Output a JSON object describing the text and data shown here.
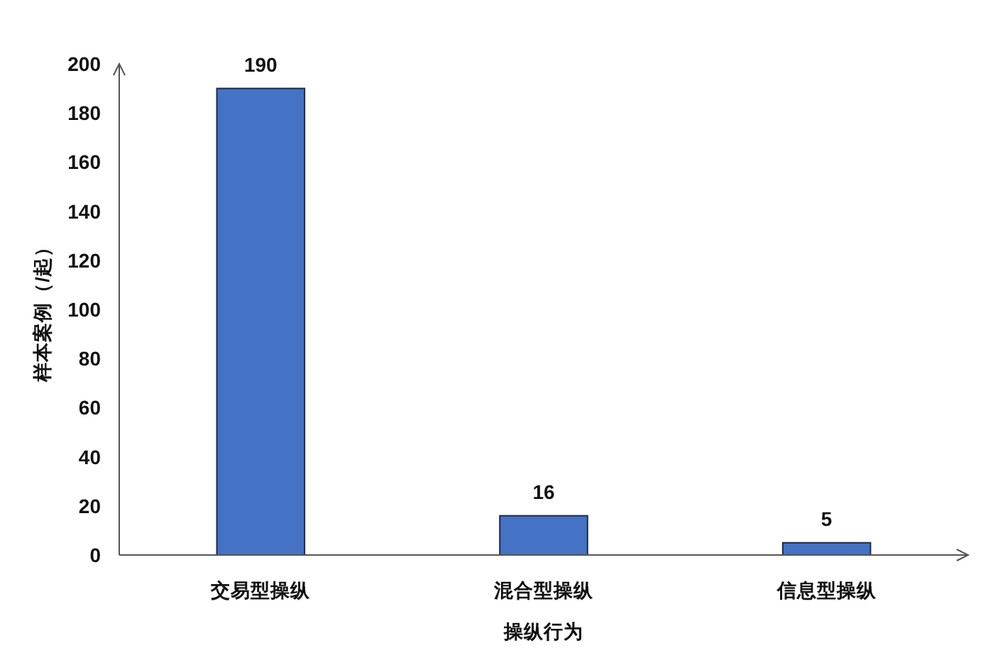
{
  "chart_data": {
    "type": "bar",
    "xlabel": "操纵行为",
    "ylabel": "样本案例（/起）",
    "categories": [
      "交易型操纵",
      "混合型操纵",
      "信息型操纵"
    ],
    "values": [
      190,
      16,
      5
    ],
    "color": "#4472c4",
    "ylim": [
      0,
      200
    ],
    "yticks": [
      0,
      20,
      40,
      60,
      80,
      100,
      120,
      140,
      160,
      180,
      200
    ],
    "data_labels": true
  }
}
